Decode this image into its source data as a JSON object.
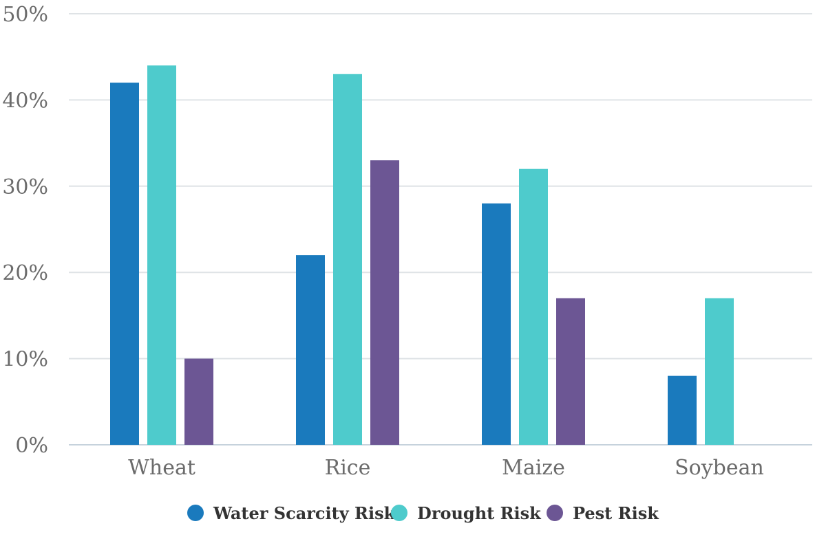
{
  "chart_data": {
    "type": "bar",
    "categories": [
      "Wheat",
      "Rice",
      "Maize",
      "Soybean"
    ],
    "series": [
      {
        "name": "Water Scarcity Risk",
        "color": "#1a7abd",
        "values": [
          42,
          22,
          28,
          8
        ]
      },
      {
        "name": "Drought Risk",
        "color": "#4ecbcc",
        "values": [
          44,
          43,
          32,
          17
        ]
      },
      {
        "name": "Pest Risk",
        "color": "#6c5694",
        "values": [
          10,
          33,
          17,
          0
        ]
      }
    ],
    "ylim": [
      0,
      50
    ],
    "yticks": [
      0,
      10,
      20,
      30,
      40,
      50
    ],
    "ytick_labels": [
      "0%",
      "10%",
      "20%",
      "30%",
      "40%",
      "50%"
    ],
    "grid": true,
    "legend_position": "bottom-center"
  }
}
